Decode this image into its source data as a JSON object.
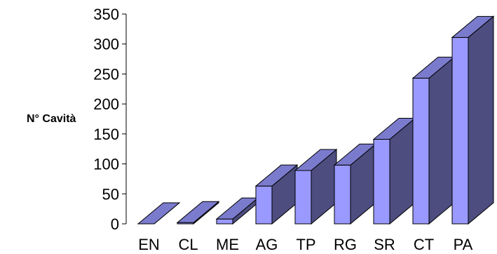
{
  "chart_data": {
    "type": "bar",
    "title": "",
    "xlabel": "",
    "ylabel": "N° Cavità",
    "categories": [
      "EN",
      "CL",
      "ME",
      "AG",
      "TP",
      "RG",
      "SR",
      "CT",
      "PA"
    ],
    "values": [
      0,
      2,
      8,
      63,
      89,
      98,
      141,
      243,
      311
    ],
    "ylim": [
      0,
      350
    ],
    "yticks": [
      0,
      50,
      100,
      150,
      200,
      250,
      300,
      350
    ],
    "style": "3d",
    "grid": false,
    "legend": "none",
    "colors": {
      "front": "#9999FF",
      "side": "#4D4D80",
      "top": "#7B7BCE",
      "stroke": "#000000"
    }
  }
}
